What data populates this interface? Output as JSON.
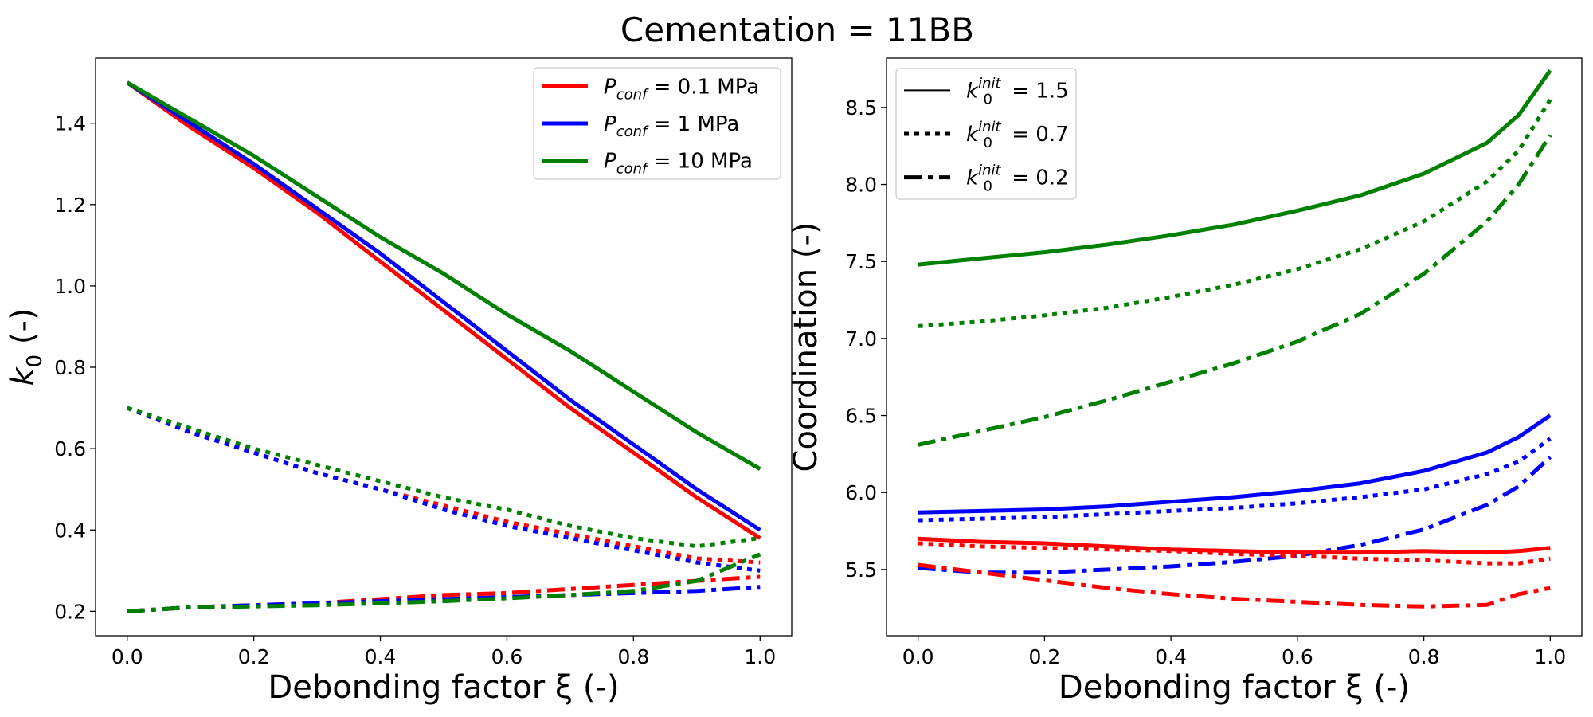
{
  "figure": {
    "title": "Cementation = 11BB"
  },
  "chart_data": [
    {
      "type": "line",
      "xlabel": "Debonding factor ξ (-)",
      "ylabel": {
        "main": "k",
        "sub": "0",
        "rest": " (-)"
      },
      "xlim": [
        -0.05,
        1.05
      ],
      "ylim": [
        0.14,
        1.56
      ],
      "xticks": [
        0.0,
        0.2,
        0.4,
        0.6,
        0.8,
        1.0
      ],
      "xtick_labels": [
        "0.0",
        "0.2",
        "0.4",
        "0.6",
        "0.8",
        "1.0"
      ],
      "yticks": [
        0.2,
        0.4,
        0.6,
        0.8,
        1.0,
        1.2,
        1.4
      ],
      "ytick_labels": [
        "0.2",
        "0.4",
        "0.6",
        "0.8",
        "1.0",
        "1.2",
        "1.4"
      ],
      "grid": false,
      "legend_position": "top-right",
      "legend": [
        {
          "main": "P",
          "sub": "conf",
          "rest": " = 0.1 MPa",
          "color": "#ff0000",
          "style": "solid"
        },
        {
          "main": "P",
          "sub": "conf",
          "rest": " = 1 MPa",
          "color": "#0000ff",
          "style": "solid"
        },
        {
          "main": "P",
          "sub": "conf",
          "rest": " = 10 MPa",
          "color": "#008000",
          "style": "solid"
        }
      ],
      "series": [
        {
          "color": "#ff0000",
          "style": "solid",
          "x": [
            0,
            0.1,
            0.2,
            0.3,
            0.4,
            0.5,
            0.6,
            0.7,
            0.8,
            0.9,
            1.0
          ],
          "y": [
            1.5,
            1.39,
            1.29,
            1.18,
            1.06,
            0.94,
            0.82,
            0.7,
            0.59,
            0.48,
            0.38
          ]
        },
        {
          "color": "#0000ff",
          "style": "solid",
          "x": [
            0,
            0.1,
            0.2,
            0.3,
            0.4,
            0.5,
            0.6,
            0.7,
            0.8,
            0.9,
            1.0
          ],
          "y": [
            1.5,
            1.4,
            1.3,
            1.19,
            1.08,
            0.96,
            0.84,
            0.72,
            0.61,
            0.5,
            0.4
          ]
        },
        {
          "color": "#008000",
          "style": "solid",
          "x": [
            0,
            0.1,
            0.2,
            0.3,
            0.4,
            0.5,
            0.6,
            0.7,
            0.8,
            0.9,
            1.0
          ],
          "y": [
            1.5,
            1.41,
            1.32,
            1.22,
            1.12,
            1.03,
            0.93,
            0.84,
            0.74,
            0.64,
            0.55
          ]
        },
        {
          "color": "#ff0000",
          "style": "dotted",
          "x": [
            0,
            0.1,
            0.2,
            0.3,
            0.4,
            0.5,
            0.6,
            0.7,
            0.8,
            0.9,
            1.0
          ],
          "y": [
            0.7,
            0.64,
            0.59,
            0.54,
            0.5,
            0.46,
            0.42,
            0.39,
            0.36,
            0.33,
            0.32
          ]
        },
        {
          "color": "#0000ff",
          "style": "dotted",
          "x": [
            0,
            0.1,
            0.2,
            0.3,
            0.4,
            0.5,
            0.6,
            0.7,
            0.8,
            0.9,
            1.0
          ],
          "y": [
            0.7,
            0.64,
            0.59,
            0.54,
            0.5,
            0.45,
            0.41,
            0.38,
            0.35,
            0.32,
            0.3
          ]
        },
        {
          "color": "#008000",
          "style": "dotted",
          "x": [
            0,
            0.1,
            0.2,
            0.3,
            0.4,
            0.5,
            0.6,
            0.7,
            0.8,
            0.9,
            1.0
          ],
          "y": [
            0.7,
            0.65,
            0.6,
            0.56,
            0.52,
            0.48,
            0.45,
            0.41,
            0.38,
            0.36,
            0.38
          ]
        },
        {
          "color": "#ff0000",
          "style": "dashdot",
          "x": [
            0,
            0.1,
            0.2,
            0.3,
            0.4,
            0.5,
            0.6,
            0.7,
            0.8,
            0.9,
            1.0
          ],
          "y": [
            0.2,
            0.21,
            0.215,
            0.22,
            0.23,
            0.24,
            0.245,
            0.255,
            0.265,
            0.275,
            0.285
          ]
        },
        {
          "color": "#0000ff",
          "style": "dashdot",
          "x": [
            0,
            0.1,
            0.2,
            0.3,
            0.4,
            0.5,
            0.6,
            0.7,
            0.8,
            0.9,
            1.0
          ],
          "y": [
            0.2,
            0.21,
            0.215,
            0.22,
            0.225,
            0.23,
            0.235,
            0.24,
            0.245,
            0.25,
            0.26
          ]
        },
        {
          "color": "#008000",
          "style": "dashdot",
          "x": [
            0,
            0.1,
            0.2,
            0.3,
            0.4,
            0.5,
            0.6,
            0.7,
            0.8,
            0.9,
            1.0
          ],
          "y": [
            0.2,
            0.21,
            0.212,
            0.215,
            0.22,
            0.225,
            0.232,
            0.24,
            0.25,
            0.275,
            0.34
          ]
        }
      ]
    },
    {
      "type": "line",
      "xlabel": "Debonding factor ξ (-)",
      "ylabel": "Coordination (-)",
      "xlim": [
        -0.05,
        1.05
      ],
      "ylim": [
        5.07,
        8.82
      ],
      "xticks": [
        0.0,
        0.2,
        0.4,
        0.6,
        0.8,
        1.0
      ],
      "xtick_labels": [
        "0.0",
        "0.2",
        "0.4",
        "0.6",
        "0.8",
        "1.0"
      ],
      "yticks": [
        5.5,
        6.0,
        6.5,
        7.0,
        7.5,
        8.0,
        8.5
      ],
      "ytick_labels": [
        "5.5",
        "6.0",
        "6.5",
        "7.0",
        "7.5",
        "8.0",
        "8.5"
      ],
      "grid": false,
      "legend_position": "top-left",
      "legend": [
        {
          "main": "k",
          "sub": "0",
          "sup": "init",
          "rest": " = 1.5",
          "color": "#000000",
          "style": "solid"
        },
        {
          "main": "k",
          "sub": "0",
          "sup": "init",
          "rest": " = 0.7",
          "color": "#000000",
          "style": "dotted"
        },
        {
          "main": "k",
          "sub": "0",
          "sup": "init",
          "rest": " = 0.2",
          "color": "#000000",
          "style": "dashdot"
        }
      ],
      "series": [
        {
          "color": "#008000",
          "style": "solid",
          "x": [
            0,
            0.1,
            0.2,
            0.3,
            0.4,
            0.5,
            0.6,
            0.7,
            0.8,
            0.9,
            0.95,
            1.0
          ],
          "y": [
            7.48,
            7.52,
            7.56,
            7.61,
            7.67,
            7.74,
            7.83,
            7.93,
            8.07,
            8.27,
            8.45,
            8.74
          ]
        },
        {
          "color": "#008000",
          "style": "dotted",
          "x": [
            0,
            0.1,
            0.2,
            0.3,
            0.4,
            0.5,
            0.6,
            0.7,
            0.8,
            0.9,
            0.95,
            1.0
          ],
          "y": [
            7.08,
            7.11,
            7.15,
            7.2,
            7.27,
            7.35,
            7.45,
            7.58,
            7.76,
            8.02,
            8.22,
            8.55
          ]
        },
        {
          "color": "#008000",
          "style": "dashdot",
          "x": [
            0,
            0.1,
            0.2,
            0.3,
            0.4,
            0.5,
            0.6,
            0.7,
            0.8,
            0.9,
            0.95,
            1.0
          ],
          "y": [
            6.31,
            6.4,
            6.49,
            6.6,
            6.72,
            6.84,
            6.98,
            7.16,
            7.42,
            7.76,
            8.0,
            8.32
          ]
        },
        {
          "color": "#0000ff",
          "style": "solid",
          "x": [
            0,
            0.1,
            0.2,
            0.3,
            0.4,
            0.5,
            0.6,
            0.7,
            0.8,
            0.9,
            0.95,
            1.0
          ],
          "y": [
            5.87,
            5.88,
            5.89,
            5.91,
            5.94,
            5.97,
            6.01,
            6.06,
            6.14,
            6.26,
            6.36,
            6.5
          ]
        },
        {
          "color": "#0000ff",
          "style": "dotted",
          "x": [
            0,
            0.1,
            0.2,
            0.3,
            0.4,
            0.5,
            0.6,
            0.7,
            0.8,
            0.9,
            0.95,
            1.0
          ],
          "y": [
            5.82,
            5.83,
            5.84,
            5.86,
            5.88,
            5.9,
            5.93,
            5.97,
            6.02,
            6.12,
            6.2,
            6.35
          ]
        },
        {
          "color": "#0000ff",
          "style": "dashdot",
          "x": [
            0,
            0.1,
            0.2,
            0.3,
            0.4,
            0.5,
            0.6,
            0.7,
            0.8,
            0.9,
            0.95,
            1.0
          ],
          "y": [
            5.51,
            5.48,
            5.48,
            5.5,
            5.52,
            5.55,
            5.59,
            5.66,
            5.76,
            5.92,
            6.04,
            6.23
          ]
        },
        {
          "color": "#ff0000",
          "style": "solid",
          "x": [
            0,
            0.1,
            0.2,
            0.3,
            0.4,
            0.5,
            0.6,
            0.7,
            0.8,
            0.9,
            0.95,
            1.0
          ],
          "y": [
            5.7,
            5.68,
            5.67,
            5.65,
            5.63,
            5.62,
            5.61,
            5.61,
            5.62,
            5.61,
            5.62,
            5.64
          ]
        },
        {
          "color": "#ff0000",
          "style": "dotted",
          "x": [
            0,
            0.1,
            0.2,
            0.3,
            0.4,
            0.5,
            0.6,
            0.7,
            0.8,
            0.9,
            0.95,
            1.0
          ],
          "y": [
            5.67,
            5.65,
            5.64,
            5.63,
            5.62,
            5.6,
            5.59,
            5.57,
            5.56,
            5.54,
            5.54,
            5.57
          ]
        },
        {
          "color": "#ff0000",
          "style": "dashdot",
          "x": [
            0,
            0.1,
            0.2,
            0.3,
            0.4,
            0.5,
            0.6,
            0.7,
            0.8,
            0.9,
            0.95,
            1.0
          ],
          "y": [
            5.53,
            5.48,
            5.43,
            5.38,
            5.34,
            5.31,
            5.29,
            5.27,
            5.26,
            5.27,
            5.34,
            5.38
          ]
        }
      ]
    }
  ]
}
